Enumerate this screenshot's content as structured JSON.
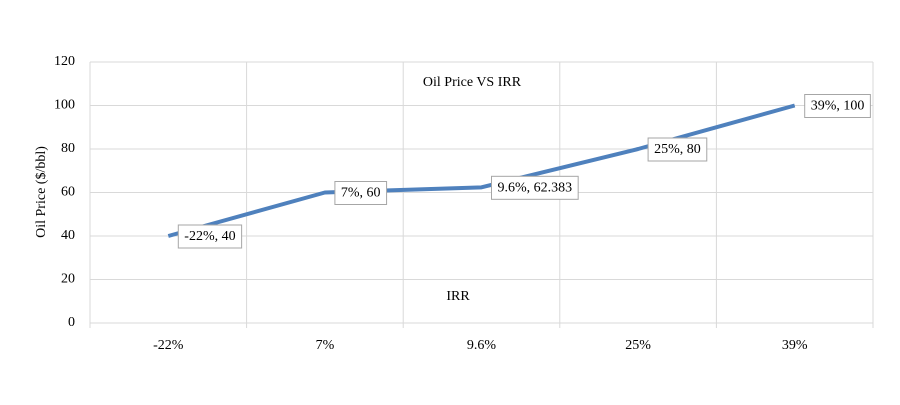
{
  "chart_data": {
    "type": "line",
    "title": "Oil Price VS IRR",
    "x_label": "IRR",
    "y_label": "Oil Price ($/bbl)",
    "categories": [
      "-22%",
      "7%",
      "9.6%",
      "25%",
      "39%"
    ],
    "values": [
      40,
      60,
      62.383,
      80,
      100
    ],
    "value_labels": [
      "-22%, 40",
      "7%, 60",
      "9.6%, 62.383",
      "25%, 80",
      "39%, 100"
    ],
    "color": "#4f81bd",
    "ylim": [
      0,
      120
    ],
    "yticks": [
      0,
      20,
      40,
      60,
      80,
      100,
      120
    ],
    "grid": true
  }
}
